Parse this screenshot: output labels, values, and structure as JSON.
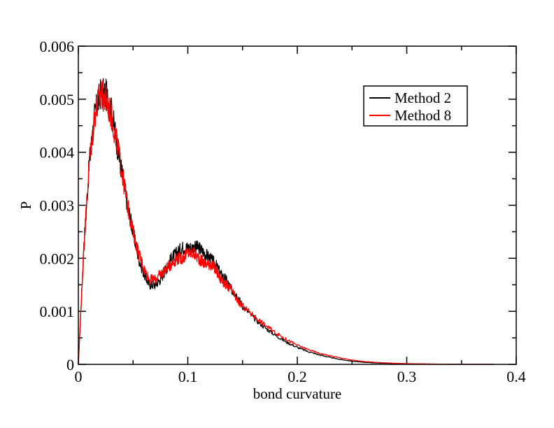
{
  "chart_data": {
    "type": "line",
    "title": "",
    "xlabel": "bond curvature",
    "ylabel": "P",
    "xlim": [
      0,
      0.4
    ],
    "ylim": [
      0,
      0.006
    ],
    "x_ticks": [
      0,
      0.1,
      0.2,
      0.3,
      0.4
    ],
    "x_tick_labels": [
      "0",
      "0.1",
      "0.2",
      "0.3",
      "0.4"
    ],
    "y_ticks": [
      0,
      0.001,
      0.002,
      0.003,
      0.004,
      0.005,
      0.006
    ],
    "y_tick_labels": [
      "0",
      "0.001",
      "0.002",
      "0.003",
      "0.004",
      "0.005",
      "0.006"
    ],
    "grid": false,
    "legend_position": "top-right",
    "series": [
      {
        "name": "Method 2",
        "color": "#000000",
        "x": [
          0,
          0.005,
          0.01,
          0.015,
          0.02,
          0.025,
          0.03,
          0.035,
          0.04,
          0.045,
          0.05,
          0.055,
          0.06,
          0.065,
          0.07,
          0.075,
          0.08,
          0.085,
          0.09,
          0.095,
          0.1,
          0.105,
          0.11,
          0.115,
          0.12,
          0.125,
          0.13,
          0.135,
          0.14,
          0.145,
          0.15,
          0.16,
          0.17,
          0.18,
          0.19,
          0.2,
          0.21,
          0.22,
          0.23,
          0.24,
          0.25,
          0.26,
          0.27,
          0.28,
          0.29,
          0.3,
          0.31,
          0.32,
          0.33,
          0.34,
          0.35,
          0.36,
          0.37,
          0.38
        ],
        "y": [
          0,
          0.0022,
          0.0038,
          0.0047,
          0.0051,
          0.0051,
          0.0048,
          0.0042,
          0.0036,
          0.003,
          0.0025,
          0.002,
          0.0017,
          0.0015,
          0.0015,
          0.0016,
          0.0018,
          0.002,
          0.0021,
          0.0022,
          0.0022,
          0.0022,
          0.0022,
          0.0021,
          0.002,
          0.0019,
          0.0017,
          0.0016,
          0.0014,
          0.0013,
          0.0011,
          0.00088,
          0.0007,
          0.00055,
          0.00042,
          0.00032,
          0.00024,
          0.00018,
          0.00013,
          9e-05,
          6e-05,
          4e-05,
          2.8e-05,
          2e-05,
          1.4e-05,
          1e-05,
          7e-06,
          5e-06,
          3e-06,
          2e-06,
          1e-06,
          7e-07,
          4e-07,
          2e-07
        ]
      },
      {
        "name": "Method 8",
        "color": "#ff0000",
        "x": [
          0,
          0.005,
          0.01,
          0.015,
          0.02,
          0.025,
          0.03,
          0.035,
          0.04,
          0.045,
          0.05,
          0.055,
          0.06,
          0.065,
          0.07,
          0.075,
          0.08,
          0.085,
          0.09,
          0.095,
          0.1,
          0.105,
          0.11,
          0.115,
          0.12,
          0.125,
          0.13,
          0.135,
          0.14,
          0.145,
          0.15,
          0.16,
          0.17,
          0.18,
          0.19,
          0.2,
          0.21,
          0.22,
          0.23,
          0.24,
          0.25,
          0.26,
          0.27,
          0.28,
          0.29,
          0.3,
          0.31,
          0.32,
          0.33,
          0.34,
          0.35,
          0.36,
          0.37,
          0.38
        ],
        "y": [
          0,
          0.0022,
          0.0038,
          0.0047,
          0.0051,
          0.005,
          0.0047,
          0.0042,
          0.0036,
          0.003,
          0.0025,
          0.0021,
          0.0018,
          0.0016,
          0.0016,
          0.0017,
          0.0018,
          0.0019,
          0.002,
          0.002,
          0.0021,
          0.0021,
          0.002,
          0.0019,
          0.0019,
          0.0018,
          0.0016,
          0.0015,
          0.0014,
          0.0012,
          0.0011,
          0.00092,
          0.00075,
          0.0006,
          0.00047,
          0.00036,
          0.00028,
          0.00021,
          0.00016,
          0.00012,
          8e-05,
          5.5e-05,
          4e-05,
          2.8e-05,
          2e-05,
          1.4e-05,
          1e-05,
          7e-06,
          5e-06,
          3e-06,
          2e-06,
          1e-06,
          6e-07,
          3e-07
        ]
      }
    ]
  }
}
